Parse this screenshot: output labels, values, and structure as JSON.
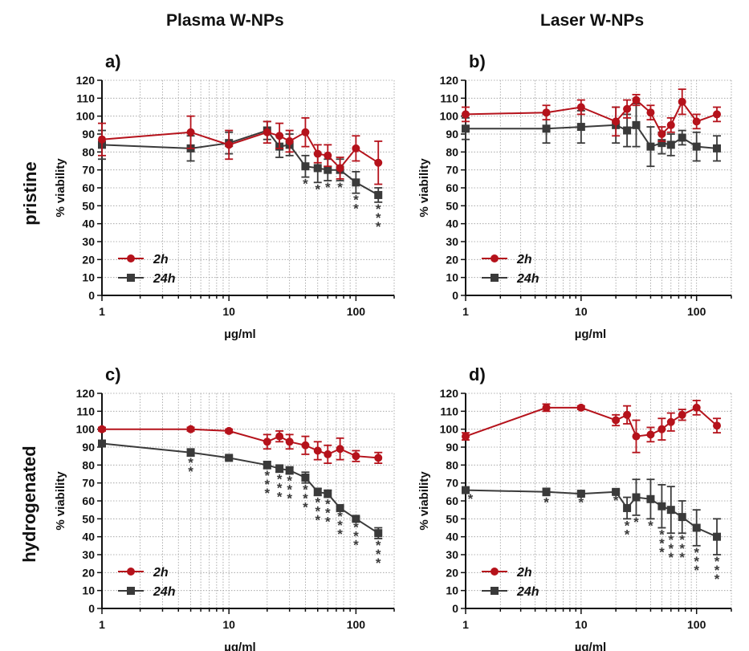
{
  "column_titles": [
    "Plasma W-NPs",
    "Laser W-NPs"
  ],
  "row_titles": [
    "pristine",
    "hydrogenated"
  ],
  "colors": {
    "2h": "#b5121b",
    "24h": "#3a3a3a",
    "grid": "#9a9a9a"
  },
  "chart_data": [
    {
      "panel": "a)",
      "type": "line",
      "xscale": "log",
      "xlim": [
        1,
        200
      ],
      "xticks": [
        "1",
        "10",
        "100"
      ],
      "ylim": [
        0,
        120
      ],
      "yticks": [
        "0",
        "10",
        "20",
        "30",
        "40",
        "50",
        "60",
        "70",
        "80",
        "90",
        "100",
        "110",
        "120"
      ],
      "xlabel": "µg/ml",
      "ylabel": "% viability",
      "grid": true,
      "legend": "bottom-left",
      "series": [
        {
          "name": "2h",
          "marker": "circle",
          "x": [
            1,
            5,
            10,
            20,
            25,
            30,
            40,
            50,
            60,
            75,
            100,
            150
          ],
          "y": [
            87,
            91,
            84,
            91,
            89,
            86,
            91,
            79,
            78,
            71,
            82,
            74
          ],
          "err": [
            9,
            9,
            8,
            6,
            7,
            6,
            8,
            5,
            6,
            6,
            7,
            12
          ]
        },
        {
          "name": "24h",
          "marker": "square",
          "x": [
            1,
            5,
            10,
            20,
            25,
            30,
            40,
            50,
            60,
            75,
            100,
            150
          ],
          "y": [
            84,
            82,
            85,
            92,
            83,
            84,
            72,
            71,
            70,
            70,
            63,
            56
          ],
          "err": [
            8,
            7,
            6,
            5,
            6,
            6,
            6,
            8,
            6,
            6,
            6,
            4
          ]
        }
      ],
      "annotations": [
        {
          "x": 40,
          "text": "*"
        },
        {
          "x": 50,
          "text": "*"
        },
        {
          "x": 60,
          "text": "*"
        },
        {
          "x": 75,
          "text": "*"
        },
        {
          "x": 100,
          "text": "**"
        },
        {
          "x": 150,
          "text": "***"
        }
      ]
    },
    {
      "panel": "b)",
      "type": "line",
      "xscale": "log",
      "xlim": [
        1,
        200
      ],
      "xticks": [
        "1",
        "10",
        "100"
      ],
      "ylim": [
        0,
        120
      ],
      "yticks": [
        "0",
        "10",
        "20",
        "30",
        "40",
        "50",
        "60",
        "70",
        "80",
        "90",
        "100",
        "110",
        "120"
      ],
      "xlabel": "µg/ml",
      "ylabel": "% viability",
      "grid": true,
      "legend": "bottom-left",
      "series": [
        {
          "name": "2h",
          "marker": "circle",
          "x": [
            1,
            5,
            10,
            20,
            25,
            30,
            40,
            50,
            60,
            75,
            100,
            150
          ],
          "y": [
            101,
            102,
            105,
            97,
            104,
            109,
            102,
            90,
            95,
            108,
            97,
            101
          ],
          "err": [
            4,
            4,
            4,
            8,
            5,
            3,
            4,
            4,
            4,
            7,
            4,
            4
          ]
        },
        {
          "name": "24h",
          "marker": "square",
          "x": [
            1,
            5,
            10,
            20,
            25,
            30,
            40,
            50,
            60,
            75,
            100,
            150
          ],
          "y": [
            93,
            93,
            94,
            95,
            92,
            95,
            83,
            85,
            84,
            88,
            83,
            82
          ],
          "err": [
            6,
            8,
            9,
            10,
            9,
            12,
            11,
            6,
            6,
            4,
            8,
            7
          ]
        }
      ],
      "annotations": []
    },
    {
      "panel": "c)",
      "type": "line",
      "xscale": "log",
      "xlim": [
        1,
        200
      ],
      "xticks": [
        "1",
        "10",
        "100"
      ],
      "ylim": [
        0,
        120
      ],
      "yticks": [
        "0",
        "10",
        "20",
        "30",
        "40",
        "50",
        "60",
        "70",
        "80",
        "90",
        "100",
        "110",
        "120"
      ],
      "xlabel": "µg/ml",
      "ylabel": "% viability",
      "grid": true,
      "legend": "bottom-left",
      "series": [
        {
          "name": "2h",
          "marker": "circle",
          "x": [
            1,
            5,
            10,
            20,
            25,
            30,
            40,
            50,
            60,
            75,
            100,
            150
          ],
          "y": [
            100,
            100,
            99,
            93,
            96,
            93,
            91,
            88,
            86,
            89,
            85,
            84
          ],
          "err": [
            1,
            1,
            1,
            4,
            3,
            4,
            5,
            5,
            5,
            6,
            3,
            3
          ]
        },
        {
          "name": "24h",
          "marker": "square",
          "x": [
            1,
            5,
            10,
            20,
            25,
            30,
            40,
            50,
            60,
            75,
            100,
            150
          ],
          "y": [
            92,
            87,
            84,
            80,
            78,
            77,
            73,
            65,
            64,
            56,
            50,
            42
          ],
          "err": [
            1,
            2,
            1,
            2,
            2,
            2,
            3,
            2,
            2,
            1,
            1,
            3
          ]
        }
      ],
      "annotations": [
        {
          "x": 5,
          "text": "**"
        },
        {
          "x": 20,
          "text": "***"
        },
        {
          "x": 25,
          "text": "***"
        },
        {
          "x": 30,
          "text": "***"
        },
        {
          "x": 40,
          "text": "***"
        },
        {
          "x": 50,
          "text": "***"
        },
        {
          "x": 60,
          "text": "***"
        },
        {
          "x": 75,
          "text": "***"
        },
        {
          "x": 100,
          "text": "***"
        },
        {
          "x": 150,
          "text": "***"
        }
      ]
    },
    {
      "panel": "d)",
      "type": "line",
      "xscale": "log",
      "xlim": [
        1,
        200
      ],
      "xticks": [
        "1",
        "10",
        "100"
      ],
      "ylim": [
        0,
        120
      ],
      "yticks": [
        "0",
        "10",
        "20",
        "30",
        "40",
        "50",
        "60",
        "70",
        "80",
        "90",
        "100",
        "110",
        "120"
      ],
      "xlabel": "µg/ml",
      "ylabel": "% viability",
      "grid": true,
      "legend": "bottom-left",
      "series": [
        {
          "name": "2h",
          "marker": "circle",
          "x": [
            1,
            5,
            10,
            20,
            25,
            30,
            40,
            50,
            60,
            75,
            100,
            150
          ],
          "y": [
            96,
            112,
            112,
            105,
            108,
            96,
            97,
            100,
            104,
            108,
            112,
            102
          ],
          "err": [
            2,
            2,
            1,
            3,
            5,
            9,
            4,
            6,
            5,
            3,
            4,
            4
          ]
        },
        {
          "name": "24h",
          "marker": "square",
          "x": [
            1,
            5,
            10,
            20,
            25,
            30,
            40,
            50,
            60,
            75,
            100,
            150
          ],
          "y": [
            66,
            65,
            64,
            65,
            56,
            62,
            61,
            57,
            55,
            51,
            45,
            40
          ],
          "err": [
            1,
            2,
            1,
            1,
            6,
            10,
            11,
            12,
            13,
            9,
            10,
            10
          ]
        }
      ],
      "annotations": [
        {
          "x": 1.1,
          "text": "*"
        },
        {
          "x": 5,
          "text": "*"
        },
        {
          "x": 10,
          "text": "*"
        },
        {
          "x": 20,
          "text": "*"
        },
        {
          "x": 25,
          "text": "**"
        },
        {
          "x": 30,
          "text": "*"
        },
        {
          "x": 40,
          "text": "*"
        },
        {
          "x": 50,
          "text": "***"
        },
        {
          "x": 60,
          "text": "***"
        },
        {
          "x": 75,
          "text": "***"
        },
        {
          "x": 100,
          "text": "***"
        },
        {
          "x": 150,
          "text": "***"
        }
      ]
    }
  ]
}
